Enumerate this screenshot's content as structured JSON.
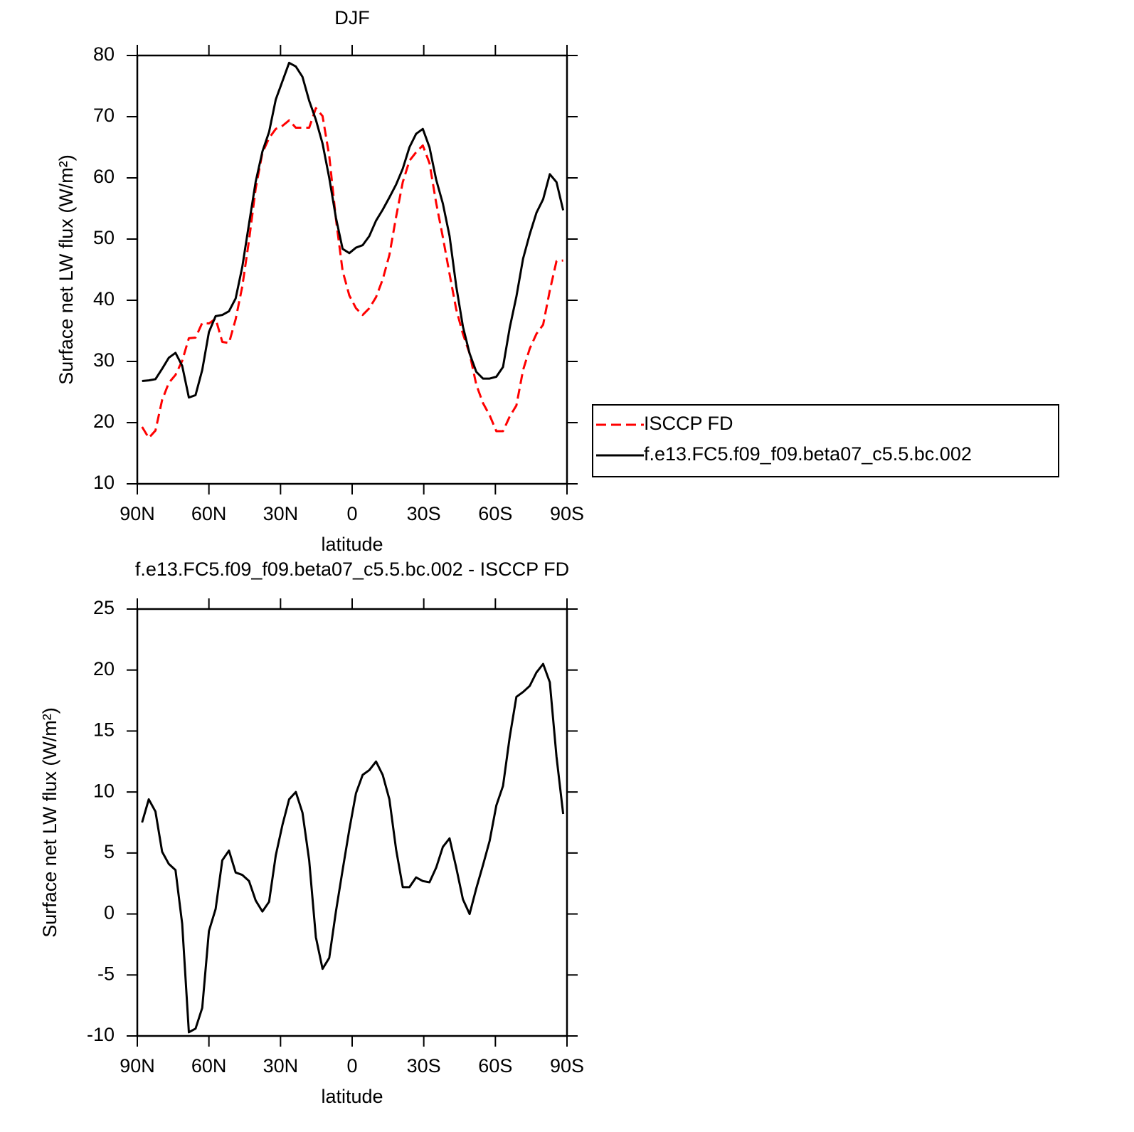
{
  "chart_data": [
    {
      "type": "line",
      "title": "DJF",
      "xlabel": "latitude",
      "ylabel": "Surface net LW flux (W/m²)",
      "x": [
        88,
        85.2,
        82.4,
        79.6,
        76.8,
        74,
        71.2,
        68.4,
        65.6,
        62.8,
        60,
        57.2,
        54.4,
        51.6,
        48.8,
        46,
        43.2,
        40.4,
        37.6,
        34.8,
        32,
        29.2,
        26.4,
        23.6,
        20.8,
        18,
        15.2,
        12.4,
        9.6,
        6.8,
        4,
        1.2,
        -1.6,
        -4.4,
        -7.2,
        -10,
        -12.8,
        -15.6,
        -18.4,
        -21.2,
        -24,
        -26.8,
        -29.6,
        -32.4,
        -35.2,
        -38,
        -40.8,
        -43.6,
        -46.4,
        -49.2,
        -52,
        -54.8,
        -57.6,
        -60.4,
        -63.2,
        -66,
        -68.8,
        -71.6,
        -74.4,
        -77.2,
        -80,
        -82.8,
        -85.6,
        -88.4
      ],
      "xlim": [
        90,
        -90
      ],
      "xticks": [
        {
          "value": 90,
          "label": "90N"
        },
        {
          "value": 60,
          "label": "60N"
        },
        {
          "value": 30,
          "label": "30N"
        },
        0,
        {
          "value": -30,
          "label": "30S"
        },
        {
          "value": -60,
          "label": "60S"
        },
        {
          "value": -90,
          "label": "90S"
        }
      ],
      "ylim": [
        10,
        80
      ],
      "yticks": [
        10,
        20,
        30,
        40,
        50,
        60,
        70,
        80
      ],
      "legend": "right",
      "series": [
        {
          "name": "ISCCP FD",
          "color": "#ff0000",
          "line_style": "dashed",
          "values": [
            19.3,
            17.5,
            18.7,
            23.7,
            26.5,
            27.8,
            30.1,
            33.8,
            33.9,
            36.3,
            36.2,
            37.0,
            33.2,
            33.0,
            36.9,
            42.3,
            49.8,
            58.3,
            64.1,
            66.5,
            68.0,
            68.5,
            69.4,
            68.2,
            68.2,
            68.2,
            71.4,
            70.1,
            63.6,
            53.3,
            44.8,
            40.8,
            38.7,
            37.6,
            38.7,
            40.5,
            43.4,
            47.4,
            53.6,
            59.3,
            62.8,
            64.2,
            65.3,
            62.4,
            55.9,
            50.3,
            44.3,
            38.5,
            34.5,
            31.3,
            26.2,
            23.2,
            21.2,
            18.6,
            18.6,
            21.0,
            22.8,
            28.6,
            32.1,
            34.5,
            36.0,
            41.6,
            46.4,
            46.5
          ]
        },
        {
          "name": "f.e13.FC5.f09_f09.beta07_c5.5.bc.002",
          "color": "#000000",
          "line_style": "solid",
          "values": [
            26.8,
            26.9,
            27.1,
            28.8,
            30.6,
            31.4,
            29.3,
            24.1,
            24.5,
            28.6,
            34.8,
            37.4,
            37.6,
            38.2,
            40.3,
            45.5,
            52.5,
            59.4,
            64.3,
            67.5,
            72.8,
            75.8,
            78.8,
            78.2,
            76.5,
            72.6,
            69.5,
            65.6,
            60.0,
            53.5,
            48.4,
            47.7,
            48.6,
            49.0,
            50.5,
            53.0,
            54.8,
            56.8,
            58.9,
            61.5,
            65.0,
            67.2,
            68.0,
            65.0,
            59.7,
            55.8,
            50.5,
            42.3,
            35.7,
            31.3,
            28.3,
            27.2,
            27.2,
            27.5,
            29.1,
            35.5,
            40.6,
            46.8,
            50.8,
            54.3,
            56.5,
            60.6,
            59.3,
            54.7
          ]
        }
      ]
    },
    {
      "type": "line",
      "title": "f.e13.FC5.f09_f09.beta07_c5.5.bc.002 - ISCCP FD",
      "xlabel": "latitude",
      "ylabel": "Surface net LW flux (W/m²)",
      "x": [
        88,
        85.2,
        82.4,
        79.6,
        76.8,
        74,
        71.2,
        68.4,
        65.6,
        62.8,
        60,
        57.2,
        54.4,
        51.6,
        48.8,
        46,
        43.2,
        40.4,
        37.6,
        34.8,
        32,
        29.2,
        26.4,
        23.6,
        20.8,
        18,
        15.2,
        12.4,
        9.6,
        6.8,
        4,
        1.2,
        -1.6,
        -4.4,
        -7.2,
        -10,
        -12.8,
        -15.6,
        -18.4,
        -21.2,
        -24,
        -26.8,
        -29.6,
        -32.4,
        -35.2,
        -38,
        -40.8,
        -43.6,
        -46.4,
        -49.2,
        -52,
        -54.8,
        -57.6,
        -60.4,
        -63.2,
        -66,
        -68.8,
        -71.6,
        -74.4,
        -77.2,
        -80,
        -82.8,
        -85.6,
        -88.4
      ],
      "xlim": [
        90,
        -90
      ],
      "xticks": [
        {
          "value": 90,
          "label": "90N"
        },
        {
          "value": 60,
          "label": "60N"
        },
        {
          "value": 30,
          "label": "30N"
        },
        0,
        {
          "value": -30,
          "label": "30S"
        },
        {
          "value": -60,
          "label": "60S"
        },
        {
          "value": -90,
          "label": "90S"
        }
      ],
      "ylim": [
        -10,
        25
      ],
      "yticks": [
        -10,
        -5,
        0,
        5,
        10,
        15,
        20,
        25
      ],
      "color": "#000000",
      "values": [
        7.5,
        9.4,
        8.4,
        5.1,
        4.1,
        3.6,
        -0.8,
        -9.7,
        -9.4,
        -7.7,
        -1.4,
        0.4,
        4.4,
        5.2,
        3.4,
        3.2,
        2.7,
        1.1,
        0.2,
        1.0,
        4.8,
        7.3,
        9.4,
        10.0,
        8.3,
        4.4,
        -1.9,
        -4.5,
        -3.6,
        0.2,
        3.6,
        6.9,
        9.9,
        11.4,
        11.8,
        12.5,
        11.4,
        9.4,
        5.3,
        2.2,
        2.2,
        3.0,
        2.7,
        2.6,
        3.8,
        5.5,
        6.2,
        3.8,
        1.2,
        0.0,
        2.1,
        4.0,
        6.0,
        8.9,
        10.5,
        14.5,
        17.8,
        18.2,
        18.7,
        19.8,
        20.5,
        19.0,
        12.9,
        8.2
      ]
    }
  ]
}
